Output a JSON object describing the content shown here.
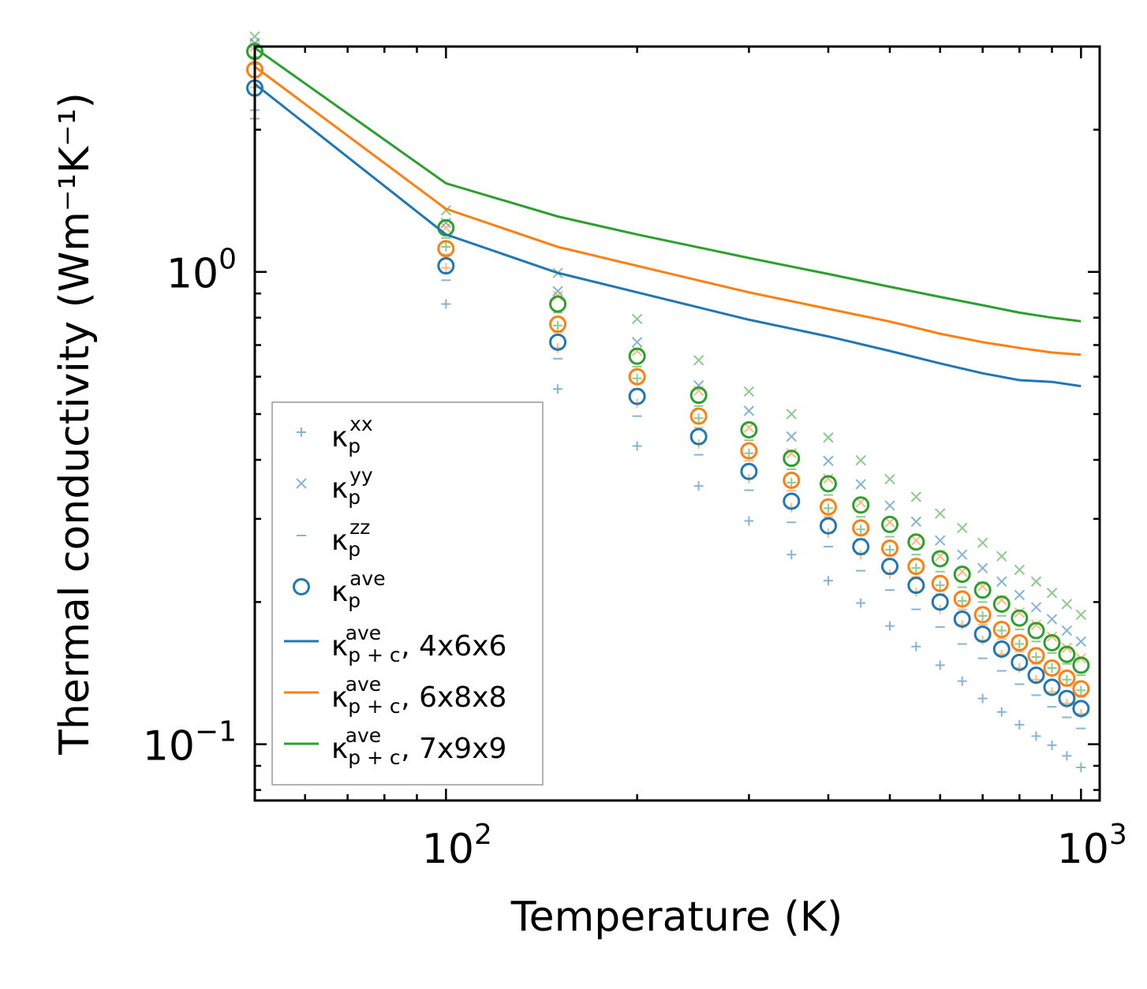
{
  "chart_data": {
    "type": "scatter",
    "title": "",
    "xlabel": "Temperature (K)",
    "ylabel": "Thermal conductivity (Wm⁻¹K⁻¹)",
    "xscale": "log",
    "yscale": "log",
    "xlim": [
      50,
      1070
    ],
    "ylim": [
      0.076,
      3.0
    ],
    "xticks": [
      {
        "value": 100,
        "base": "10",
        "exp": "2"
      },
      {
        "value": 1000,
        "base": "10",
        "exp": "3"
      }
    ],
    "yticks": [
      {
        "value": 0.1,
        "base": "10",
        "exp": "−1"
      },
      {
        "value": 1.0,
        "base": "10",
        "exp": "0"
      }
    ],
    "x": [
      50,
      100,
      150,
      200,
      250,
      300,
      350,
      400,
      450,
      500,
      550,
      600,
      650,
      700,
      750,
      800,
      850,
      900,
      950,
      1000
    ],
    "series": [
      {
        "name": "kxx",
        "label_main": "κ",
        "label_sup": "xx",
        "label_sub": "p",
        "marker": "plus",
        "color": "#1f77b4",
        "opacity": 0.55,
        "values": [
          2.11,
          0.855,
          0.565,
          0.428,
          0.352,
          0.297,
          0.252,
          0.222,
          0.199,
          0.178,
          0.161,
          0.147,
          0.136,
          0.125,
          0.117,
          0.11,
          0.104,
          0.0995,
          0.0945,
          0.0893
        ]
      },
      {
        "name": "kyy",
        "label_main": "κ",
        "label_sup": "yy",
        "label_sub": "p",
        "marker": "x",
        "color": "#1f77b4",
        "opacity": 0.55,
        "values": [
          3.05,
          1.27,
          0.91,
          0.71,
          0.575,
          0.508,
          0.448,
          0.398,
          0.355,
          0.32,
          0.296,
          0.27,
          0.252,
          0.236,
          0.221,
          0.207,
          0.195,
          0.184,
          0.174,
          0.165
        ]
      },
      {
        "name": "kzz",
        "label_main": "κ",
        "label_sup": "zz",
        "label_sub": "p",
        "marker": "minus",
        "color": "#1f77b4",
        "opacity": 0.55,
        "values": [
          2.2,
          0.96,
          0.655,
          0.495,
          0.41,
          0.345,
          0.295,
          0.262,
          0.233,
          0.212,
          0.193,
          0.177,
          0.163,
          0.152,
          0.143,
          0.134,
          0.127,
          0.12,
          0.114,
          0.108
        ]
      },
      {
        "name": "kave",
        "label_main": "κ",
        "label_sup": "ave",
        "label_sub": "p",
        "marker": "circle",
        "color": "#1f77b4",
        "opacity": 1.0,
        "values": [
          2.45,
          1.03,
          0.71,
          0.545,
          0.448,
          0.378,
          0.327,
          0.29,
          0.262,
          0.238,
          0.217,
          0.2,
          0.184,
          0.171,
          0.159,
          0.149,
          0.14,
          0.132,
          0.125,
          0.119
        ]
      },
      {
        "name": "kave_6x8x8",
        "marker": "circle",
        "color": "#ff7f0e",
        "opacity": 1.0,
        "values": [
          2.68,
          1.12,
          0.775,
          0.6,
          0.495,
          0.418,
          0.362,
          0.318,
          0.287,
          0.26,
          0.238,
          0.219,
          0.203,
          0.188,
          0.175,
          0.164,
          0.154,
          0.145,
          0.138,
          0.131
        ]
      },
      {
        "name": "kave_7x9x9",
        "marker": "circle",
        "color": "#2ca02c",
        "opacity": 1.0,
        "values": [
          2.93,
          1.24,
          0.855,
          0.663,
          0.548,
          0.463,
          0.403,
          0.356,
          0.321,
          0.292,
          0.268,
          0.247,
          0.229,
          0.212,
          0.198,
          0.185,
          0.174,
          0.164,
          0.155,
          0.147
        ]
      },
      {
        "name": "kxx_6x8x8",
        "marker": "plus",
        "color": "#ff7f0e",
        "opacity": 0.55,
        "values": [
          2.46,
          1.02,
          0.69,
          0.527,
          0.432,
          0.365,
          0.317,
          0.28,
          0.252,
          0.229,
          0.21,
          0.193,
          0.179,
          0.166,
          0.155,
          0.145,
          0.137,
          0.129,
          0.122,
          0.116
        ]
      },
      {
        "name": "kyy_6x8x8",
        "marker": "x",
        "color": "#ff7f0e",
        "opacity": 0.55,
        "values": [
          3.0,
          1.24,
          0.89,
          0.68,
          0.56,
          0.468,
          0.413,
          0.365,
          0.325,
          0.295,
          0.27,
          0.25,
          0.232,
          0.216,
          0.202,
          0.19,
          0.179,
          0.169,
          0.16,
          0.152
        ]
      },
      {
        "name": "kzz_6x8x8",
        "marker": "minus",
        "color": "#ff7f0e",
        "opacity": 0.55,
        "values": [
          2.58,
          1.09,
          0.745,
          0.565,
          0.468,
          0.398,
          0.344,
          0.303,
          0.272,
          0.246,
          0.226,
          0.208,
          0.193,
          0.179,
          0.167,
          0.157,
          0.148,
          0.14,
          0.133,
          0.126
        ]
      },
      {
        "name": "kxx_7x9x9",
        "marker": "plus",
        "color": "#2ca02c",
        "opacity": 0.55,
        "values": [
          2.75,
          1.13,
          0.77,
          0.595,
          0.49,
          0.413,
          0.358,
          0.316,
          0.285,
          0.258,
          0.236,
          0.217,
          0.201,
          0.187,
          0.174,
          0.163,
          0.153,
          0.145,
          0.137,
          0.13
        ]
      },
      {
        "name": "kyy_7x9x9",
        "marker": "x",
        "color": "#2ca02c",
        "opacity": 0.55,
        "values": [
          3.15,
          1.35,
          0.995,
          0.795,
          0.65,
          0.558,
          0.5,
          0.446,
          0.399,
          0.364,
          0.334,
          0.308,
          0.287,
          0.267,
          0.25,
          0.234,
          0.221,
          0.209,
          0.198,
          0.188
        ]
      },
      {
        "name": "kzz_7x9x9",
        "marker": "minus",
        "color": "#2ca02c",
        "opacity": 0.55,
        "values": [
          2.85,
          1.18,
          0.82,
          0.63,
          0.52,
          0.44,
          0.382,
          0.337,
          0.303,
          0.275,
          0.252,
          0.232,
          0.215,
          0.2,
          0.187,
          0.175,
          0.165,
          0.156,
          0.148,
          0.14
        ]
      }
    ],
    "lines": [
      {
        "name": "kpc_4x6x6",
        "label_main": "κ",
        "label_sup": "ave",
        "label_sub": "p + c",
        "label_suffix": ", 4x6x6",
        "color": "#1f77b4",
        "x": [
          50,
          100,
          150,
          200,
          300,
          400,
          500,
          600,
          700,
          800,
          900,
          1000
        ],
        "values": [
          2.5,
          1.2,
          0.995,
          0.905,
          0.792,
          0.73,
          0.68,
          0.64,
          0.61,
          0.59,
          0.585,
          0.573
        ]
      },
      {
        "name": "kpc_6x8x8",
        "label_main": "κ",
        "label_sup": "ave",
        "label_sub": "p + c",
        "label_suffix": ", 6x8x8",
        "color": "#ff7f0e",
        "x": [
          50,
          100,
          150,
          200,
          300,
          400,
          500,
          600,
          700,
          800,
          900,
          1000
        ],
        "values": [
          2.72,
          1.36,
          1.13,
          1.03,
          0.905,
          0.835,
          0.785,
          0.74,
          0.71,
          0.69,
          0.675,
          0.668
        ]
      },
      {
        "name": "kpc_7x9x9",
        "label_main": "κ",
        "label_sup": "ave",
        "label_sub": "p + c",
        "label_suffix": ", 7x9x9",
        "color": "#2ca02c",
        "x": [
          50,
          100,
          150,
          200,
          300,
          400,
          500,
          600,
          700,
          800,
          900,
          1000
        ],
        "values": [
          2.98,
          1.54,
          1.31,
          1.2,
          1.07,
          0.99,
          0.93,
          0.885,
          0.85,
          0.82,
          0.8,
          0.786
        ]
      }
    ],
    "legend": {
      "location": "lower-left",
      "entries": [
        "kxx",
        "kyy",
        "kzz",
        "kave",
        "kpc_4x6x6",
        "kpc_6x8x8",
        "kpc_7x9x9"
      ]
    }
  }
}
